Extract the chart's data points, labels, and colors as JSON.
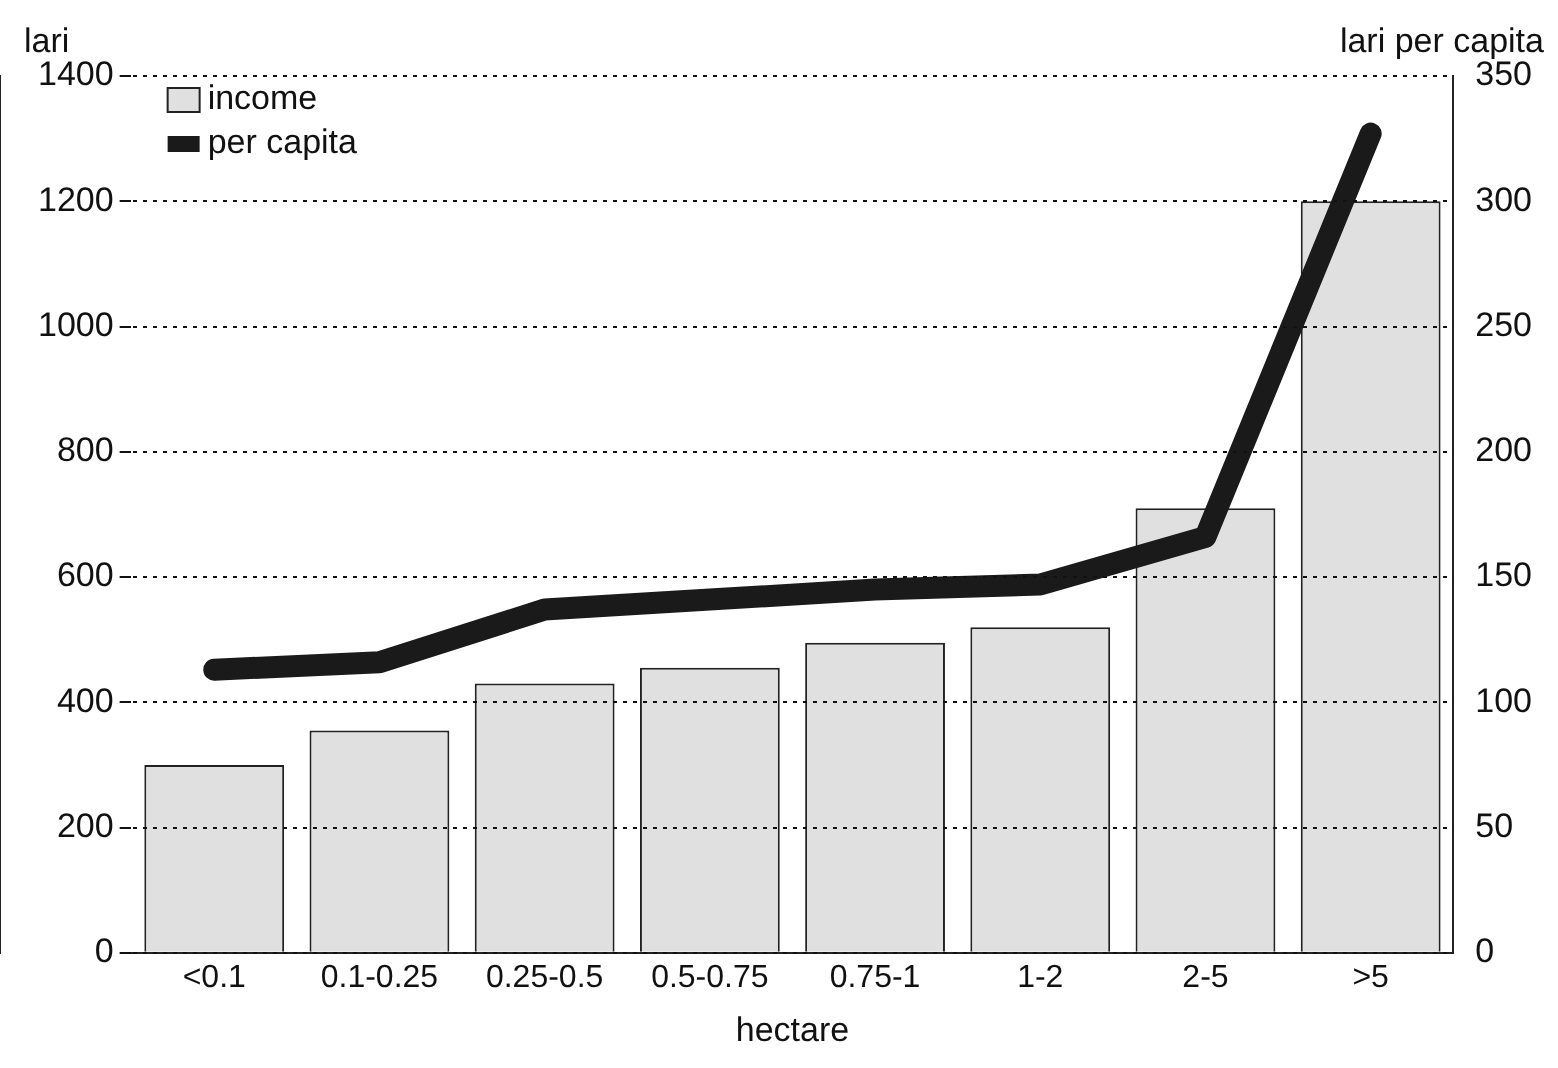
{
  "chart_data": {
    "type": "bar",
    "categories": [
      "<0.1",
      "0.1-0.25",
      "0.25-0.5",
      "0.5-0.75",
      "0.75-1",
      "1-2",
      "2-5",
      ">5"
    ],
    "xlabel": "hectare",
    "ylabel": "lari",
    "y2label": "lari per capita",
    "series": [
      {
        "name": "income",
        "color": "#e0e0e0",
        "values": [
          300,
          355,
          430,
          455,
          495,
          520,
          710,
          1200
        ]
      },
      {
        "name": "per capita",
        "type": "line",
        "axis": "y2",
        "color": "#1a1a1a",
        "values": [
          113,
          116,
          137,
          141,
          145,
          147,
          166,
          327
        ]
      }
    ],
    "ylim": [
      0,
      1400
    ],
    "yticks": [
      0,
      200,
      400,
      600,
      800,
      1000,
      1200,
      1400
    ],
    "y2lim": [
      0,
      350
    ],
    "y2ticks": [
      0,
      50,
      100,
      150,
      200,
      250,
      300,
      350
    ],
    "grid": "y",
    "legend": "top left",
    "marker": "none"
  }
}
